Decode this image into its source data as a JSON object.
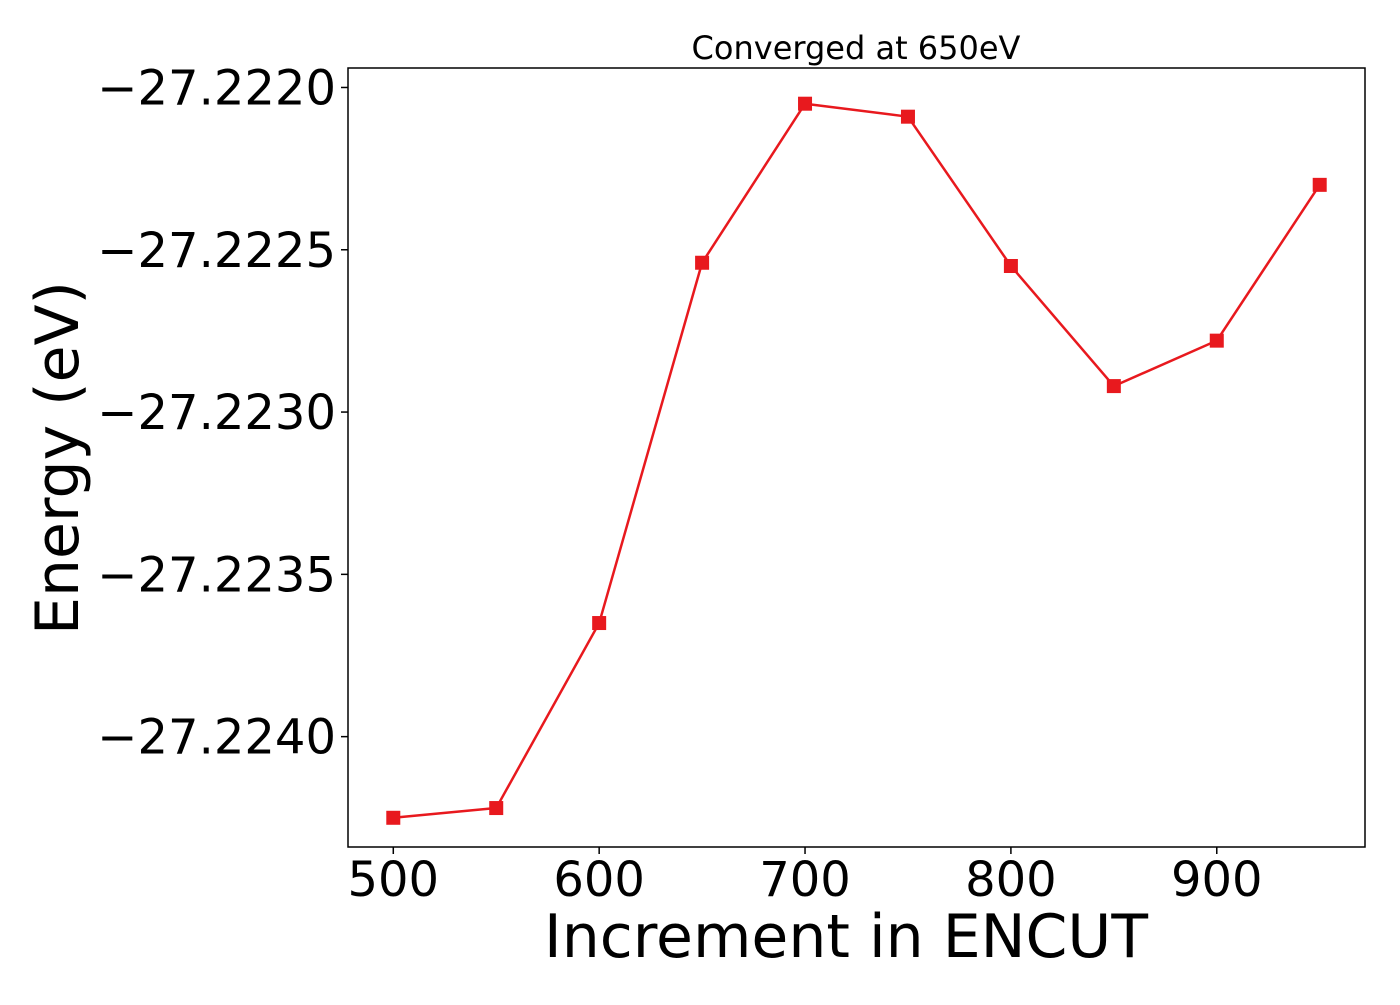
{
  "chart_data": {
    "type": "line",
    "title": "Converged at 650eV",
    "xlabel": "Increment in ENCUT",
    "ylabel": "Energy (eV)",
    "x": [
      500,
      550,
      600,
      650,
      700,
      750,
      800,
      850,
      900,
      950
    ],
    "series": [
      {
        "values": [
          -27.22425,
          -27.22422,
          -27.22365,
          -27.22254,
          -27.22205,
          -27.22209,
          -27.22255,
          -27.22292,
          -27.22278,
          -27.2223
        ],
        "color": "#e8191e",
        "marker": "square"
      }
    ],
    "xlim": [
      478,
      972
    ],
    "ylim": [
      -27.22434,
      -27.22194
    ],
    "x_ticks": [
      500,
      600,
      700,
      800,
      900
    ],
    "x_tick_labels": [
      "500",
      "600",
      "700",
      "800",
      "900"
    ],
    "y_ticks": [
      -27.222,
      -27.2225,
      -27.223,
      -27.2235,
      -27.224
    ],
    "y_tick_labels": [
      "−27.2220",
      "−27.2225",
      "−27.2230",
      "−27.2235",
      "−27.2240"
    ],
    "grid": false,
    "legend": "none"
  }
}
